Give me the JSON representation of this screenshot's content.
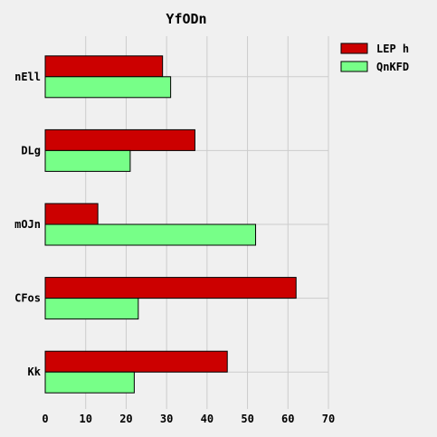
{
  "chart_data": {
    "type": "bar",
    "orientation": "horizontal",
    "title": "YfODn",
    "categories": [
      "nEll",
      "DLg",
      "mOJn",
      "CFos",
      "Kk"
    ],
    "series": [
      {
        "name": "LEP h",
        "values": [
          29,
          37,
          13,
          62,
          45
        ]
      },
      {
        "name": "QnKFD",
        "values": [
          31,
          21,
          52,
          23,
          22
        ]
      }
    ],
    "xlim": [
      0,
      70
    ],
    "xticks": [
      "0",
      "10",
      "20",
      "30",
      "40",
      "50",
      "60",
      "70"
    ],
    "grid": true,
    "legend_position": "top-right",
    "colors": {
      "series": [
        "#cc0000",
        "#77ff88"
      ],
      "background": "#f0f0f0",
      "grid": "#cccccc",
      "edge": "#000000"
    }
  }
}
